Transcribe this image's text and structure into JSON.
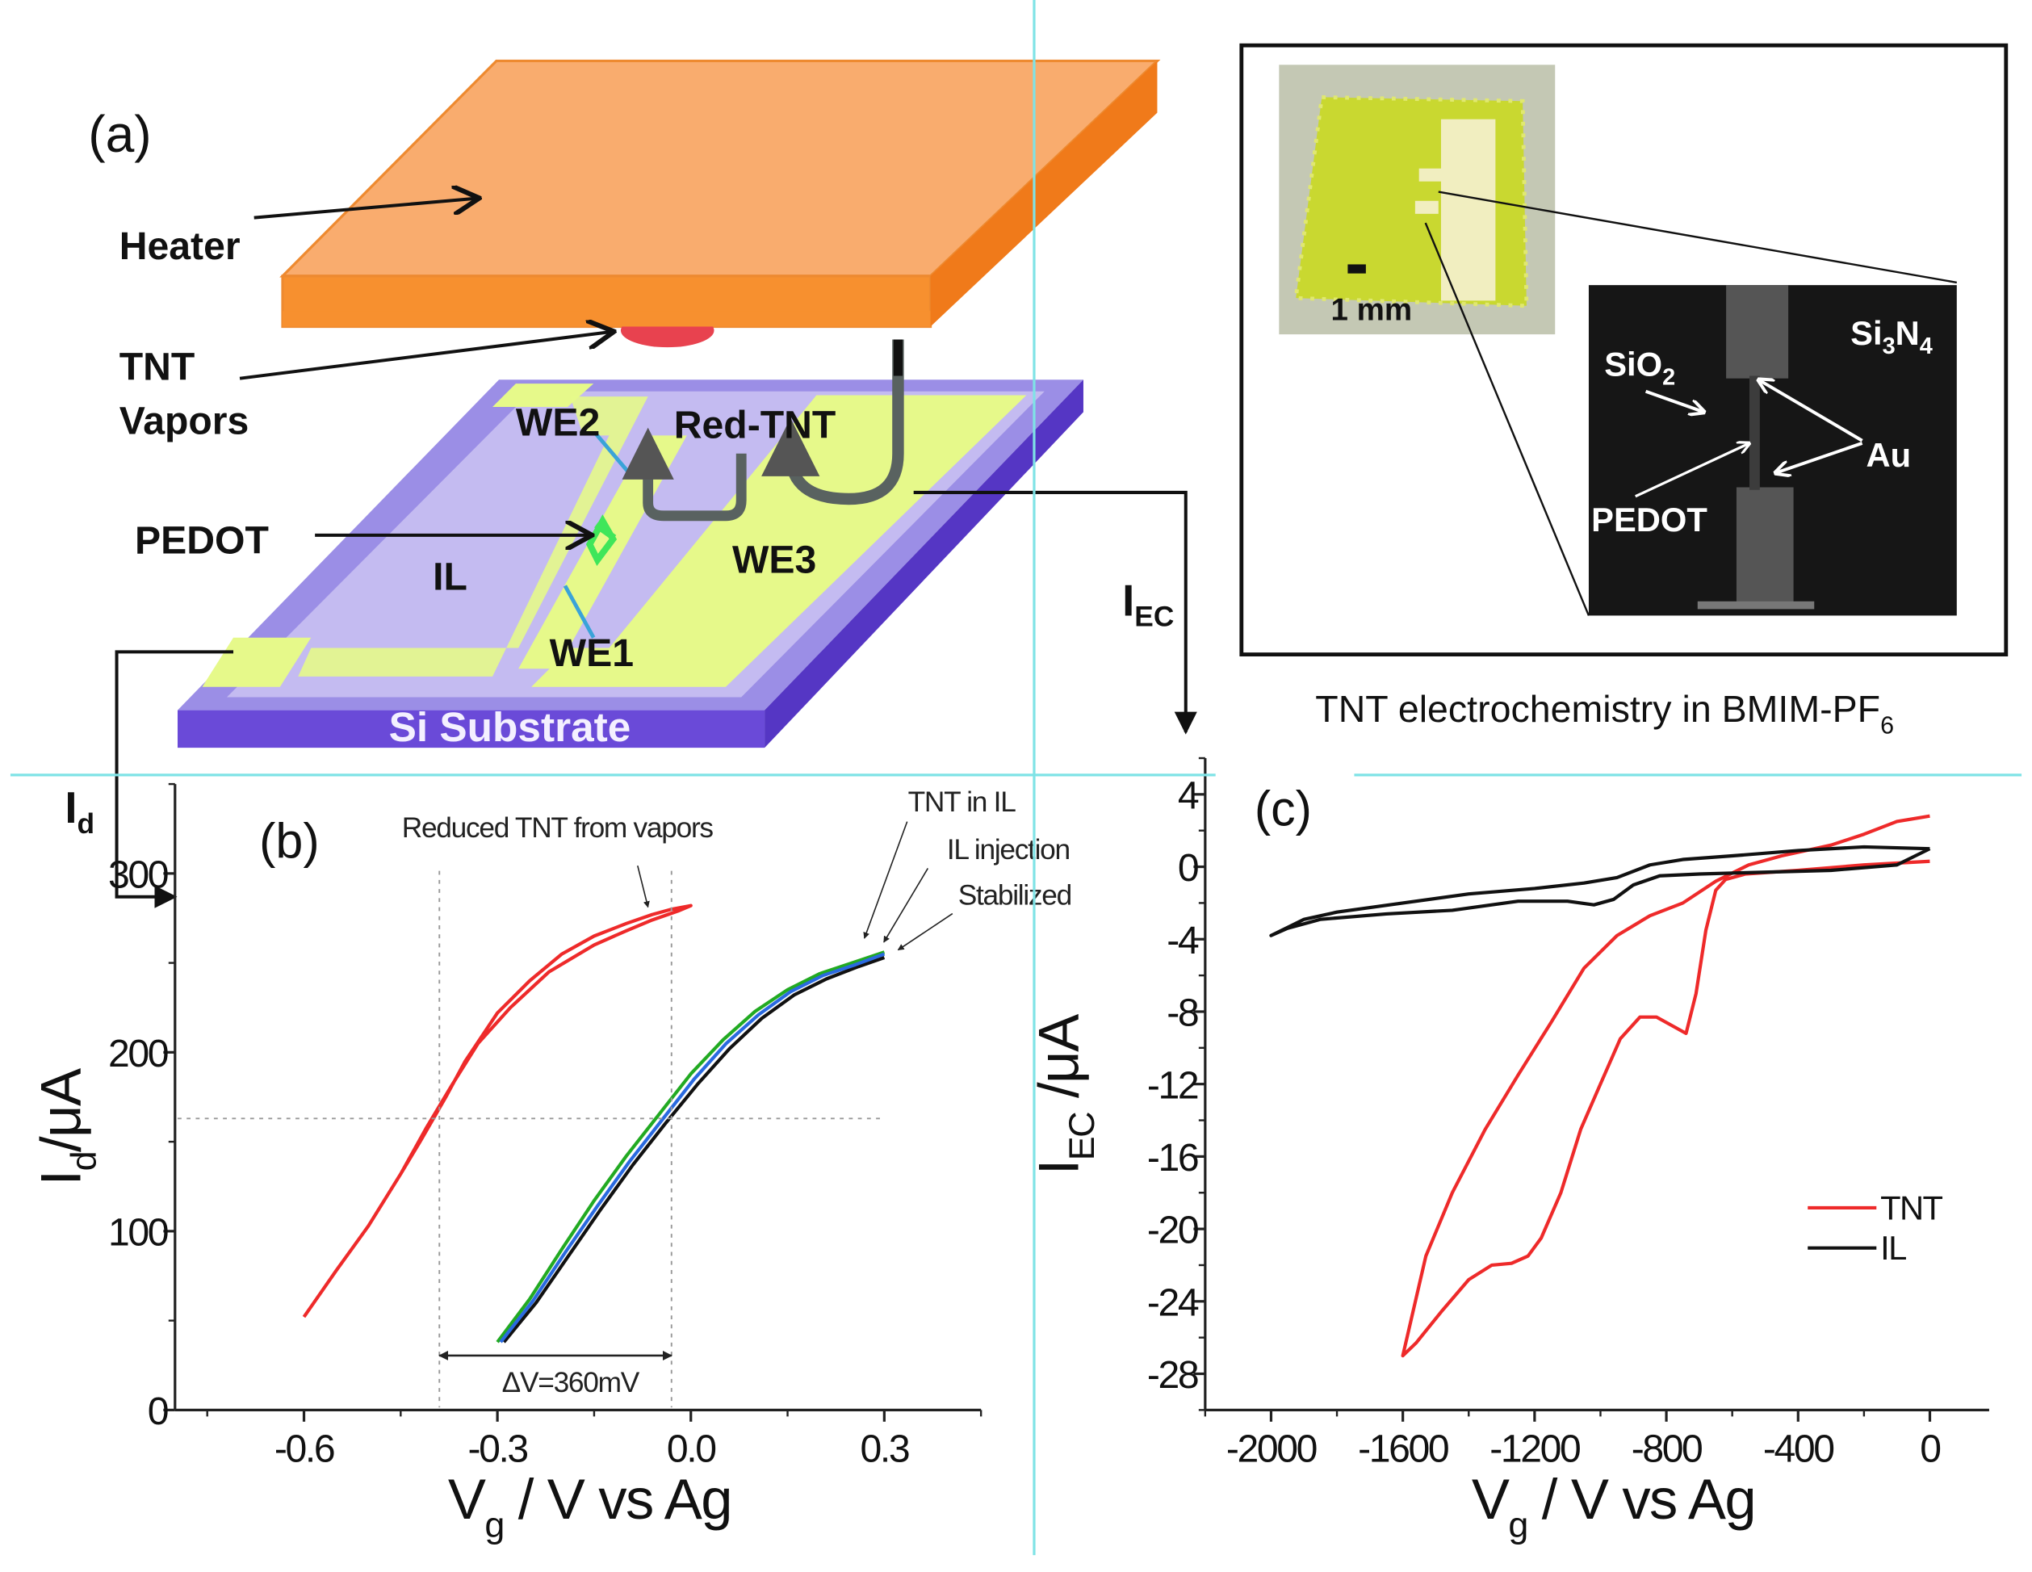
{
  "panel_a": {
    "label": "(a)",
    "heater": "Heater",
    "tnt_vapors_1": "TNT",
    "tnt_vapors_2": "Vapors",
    "pedot": "PEDOT",
    "we1": "WE1",
    "we2": "WE2",
    "we3": "WE3",
    "il": "IL",
    "red_tnt": "Red-TNT",
    "substrate": "Si Substrate",
    "i_ec": "I",
    "i_ec_sub": "EC",
    "i_d": "I",
    "i_d_sub": "d",
    "colors": {
      "heater_top": "#f9ac6e",
      "heater_front": "#f7902f",
      "substrate": "#8f82e0",
      "electrode": "#e6f98a",
      "tnt": "#e8424f"
    }
  },
  "inset": {
    "scale_bar": "1 mm",
    "sio2": "SiO",
    "sio2_sub": "2",
    "si3n4_a": "Si",
    "si3n4_b": "3",
    "si3n4_c": "N",
    "si3n4_d": "4",
    "au": "Au",
    "pedot": "PEDOT",
    "caption": "TNT electrochemistry in BMIM-PF",
    "caption_sub": "6"
  },
  "chart_data": [
    {
      "type": "line",
      "panel": "(b)",
      "xlabel": "V",
      "xlabel_sub": "g",
      "xlabel_rest": " / V vs Ag",
      "ylabel": "I",
      "ylabel_sub": "d",
      "ylabel_rest": "/μA",
      "xlim": [
        -0.8,
        0.45
      ],
      "ylim": [
        0,
        350
      ],
      "xticks": [
        -0.6,
        -0.3,
        0.0,
        0.3
      ],
      "xtick_labels": [
        "-0.6",
        "-0.3",
        "0.0",
        "0.3"
      ],
      "yticks": [
        0,
        100,
        200,
        300
      ],
      "ytick_labels": [
        "0",
        "100",
        "200",
        "300"
      ],
      "annotations": {
        "reduced": "Reduced TNT from vapors",
        "tnt_in_il": "TNT in IL",
        "il_injection": "IL injection",
        "stabilized": "Stabilized",
        "delta_v": "ΔV=360mV"
      },
      "guides": {
        "vlines": [
          -0.39,
          -0.03
        ],
        "hline": 163
      },
      "series": [
        {
          "name": "Reduced TNT from vapors",
          "color": "#ee2a2a",
          "x": [
            -0.6,
            -0.55,
            -0.5,
            -0.45,
            -0.42,
            -0.38,
            -0.35,
            -0.3,
            -0.25,
            -0.2,
            -0.15,
            -0.1,
            -0.06,
            -0.03,
            0.0,
            -0.02,
            -0.06,
            -0.1,
            -0.15,
            -0.22,
            -0.28,
            -0.33,
            -0.37,
            -0.41,
            -0.45,
            -0.5,
            -0.55,
            -0.6
          ],
          "y": [
            52,
            78,
            103,
            132,
            150,
            175,
            195,
            222,
            240,
            255,
            265,
            272,
            277,
            280,
            282,
            279,
            274,
            268,
            260,
            245,
            225,
            205,
            182,
            158,
            132,
            103,
            78,
            52
          ]
        },
        {
          "name": "TNT in IL",
          "color": "#22aa22",
          "x": [
            -0.3,
            -0.25,
            -0.2,
            -0.15,
            -0.1,
            -0.05,
            0.0,
            0.05,
            0.1,
            0.15,
            0.2,
            0.25,
            0.3
          ],
          "y": [
            38,
            62,
            90,
            117,
            142,
            165,
            188,
            207,
            223,
            235,
            244,
            250,
            256
          ]
        },
        {
          "name": "IL injection",
          "color": "#111111",
          "x": [
            -0.29,
            -0.24,
            -0.19,
            -0.14,
            -0.09,
            -0.04,
            0.01,
            0.06,
            0.11,
            0.16,
            0.21,
            0.26,
            0.3
          ],
          "y": [
            38,
            60,
            86,
            112,
            137,
            160,
            182,
            202,
            219,
            232,
            241,
            248,
            253
          ]
        },
        {
          "name": "Stabilized",
          "color": "#2a6ae0",
          "x": [
            -0.295,
            -0.245,
            -0.195,
            -0.145,
            -0.095,
            -0.045,
            0.005,
            0.055,
            0.105,
            0.155,
            0.205,
            0.255,
            0.3
          ],
          "y": [
            38,
            61,
            88,
            114,
            139,
            162,
            185,
            205,
            221,
            234,
            243,
            249,
            255
          ]
        }
      ]
    },
    {
      "type": "line",
      "panel": "(c)",
      "xlabel": "V",
      "xlabel_sub": "g",
      "xlabel_rest": " / V vs Ag",
      "ylabel": "I",
      "ylabel_sub": "EC",
      "ylabel_rest": " /μA",
      "xlim": [
        -2200,
        180
      ],
      "ylim": [
        -30,
        6
      ],
      "xticks": [
        -2000,
        -1600,
        -1200,
        -800,
        -400,
        0
      ],
      "xtick_labels": [
        "-2000",
        "-1600",
        "-1200",
        "-800",
        "-400",
        "0"
      ],
      "yticks": [
        4,
        0,
        -4,
        -8,
        -12,
        -16,
        -20,
        -24,
        -28
      ],
      "ytick_labels": [
        "4",
        "0",
        "-4",
        "-8",
        "-12",
        "-16",
        "-20",
        "-24",
        "-28"
      ],
      "legend": {
        "position": "lower-right",
        "entries": [
          "TNT",
          "IL"
        ]
      },
      "series": [
        {
          "name": "TNT",
          "color": "#ee2a2a",
          "x": [
            0,
            -100,
            -200,
            -300,
            -450,
            -550,
            -650,
            -750,
            -850,
            -950,
            -1050,
            -1150,
            -1250,
            -1350,
            -1450,
            -1530,
            -1600,
            -1560,
            -1480,
            -1400,
            -1330,
            -1270,
            -1220,
            -1180,
            -1120,
            -1060,
            -1000,
            -940,
            -880,
            -830,
            -780,
            -740,
            -710,
            -680,
            -650,
            -620,
            -560,
            -400,
            -200,
            0
          ],
          "y": [
            2.8,
            2.5,
            1.8,
            1.2,
            0.6,
            0.1,
            -0.8,
            -2.0,
            -2.7,
            -3.8,
            -5.6,
            -8.6,
            -11.5,
            -14.5,
            -18,
            -21.5,
            -27,
            -26.3,
            -24.5,
            -22.8,
            -22,
            -21.9,
            -21.5,
            -20.5,
            -18,
            -14.5,
            -12,
            -9.5,
            -8.3,
            -8.3,
            -8.8,
            -9.2,
            -7,
            -3.5,
            -1.3,
            -0.7,
            -0.4,
            -0.2,
            0.1,
            0.3
          ]
        },
        {
          "name": "IL",
          "color": "#111111",
          "x": [
            0,
            -200,
            -400,
            -600,
            -750,
            -850,
            -950,
            -1050,
            -1200,
            -1400,
            -1600,
            -1800,
            -1900,
            -2000,
            -1950,
            -1850,
            -1650,
            -1450,
            -1250,
            -1100,
            -1020,
            -960,
            -900,
            -820,
            -700,
            -500,
            -300,
            -100,
            0
          ],
          "y": [
            1.0,
            1.1,
            0.9,
            0.6,
            0.4,
            0.1,
            -0.6,
            -0.9,
            -1.2,
            -1.5,
            -2.0,
            -2.5,
            -2.9,
            -3.8,
            -3.4,
            -2.9,
            -2.6,
            -2.4,
            -1.9,
            -1.9,
            -2.1,
            -1.8,
            -1.0,
            -0.5,
            -0.4,
            -0.3,
            -0.2,
            0.1,
            1.0
          ]
        }
      ]
    }
  ]
}
